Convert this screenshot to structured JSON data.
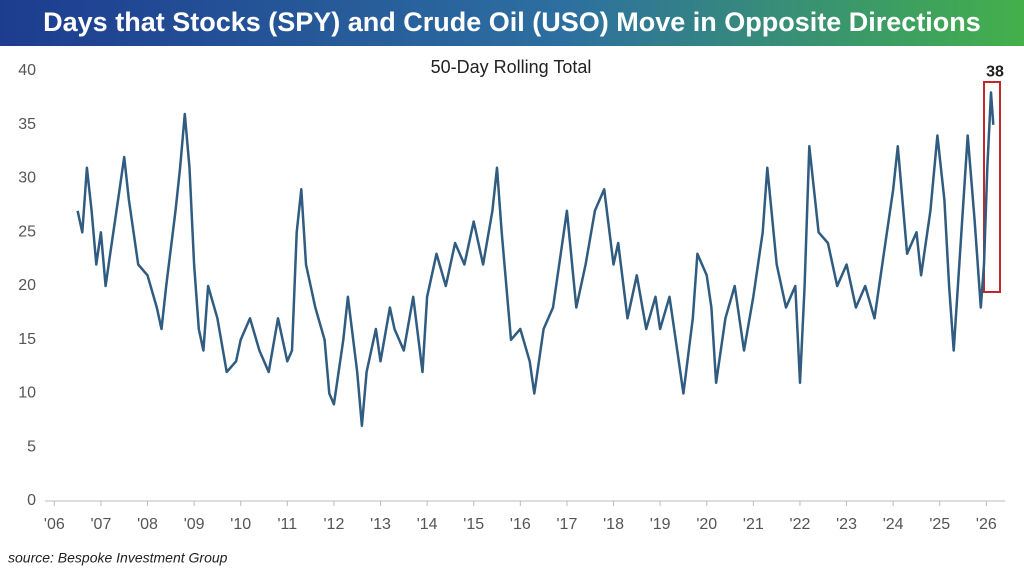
{
  "chart_data": {
    "type": "line",
    "title": "Days that Stocks (SPY) and Crude Oil (USO) Move in Opposite Directions",
    "subtitle": "50-Day Rolling Total",
    "source": "source: Bespoke Investment Group",
    "color": "#2f5c80",
    "x": [
      2006.5,
      2006.6,
      2006.7,
      2006.8,
      2006.9,
      2007.0,
      2007.1,
      2007.2,
      2007.4,
      2007.5,
      2007.6,
      2007.8,
      2008.0,
      2008.2,
      2008.3,
      2008.4,
      2008.6,
      2008.7,
      2008.8,
      2008.9,
      2009.0,
      2009.1,
      2009.2,
      2009.3,
      2009.5,
      2009.7,
      2009.9,
      2010.0,
      2010.2,
      2010.4,
      2010.6,
      2010.8,
      2011.0,
      2011.1,
      2011.2,
      2011.3,
      2011.4,
      2011.6,
      2011.8,
      2011.9,
      2012.0,
      2012.2,
      2012.3,
      2012.5,
      2012.6,
      2012.7,
      2012.9,
      2013.0,
      2013.2,
      2013.3,
      2013.5,
      2013.7,
      2013.9,
      2014.0,
      2014.2,
      2014.4,
      2014.6,
      2014.8,
      2015.0,
      2015.2,
      2015.4,
      2015.5,
      2015.6,
      2015.8,
      2016.0,
      2016.2,
      2016.3,
      2016.5,
      2016.7,
      2016.9,
      2017.0,
      2017.2,
      2017.4,
      2017.6,
      2017.8,
      2018.0,
      2018.1,
      2018.3,
      2018.5,
      2018.7,
      2018.9,
      2019.0,
      2019.2,
      2019.4,
      2019.5,
      2019.7,
      2019.8,
      2020.0,
      2020.1,
      2020.2,
      2020.4,
      2020.6,
      2020.8,
      2021.0,
      2021.2,
      2021.3,
      2021.5,
      2021.7,
      2021.9,
      2022.0,
      2022.1,
      2022.2,
      2022.4,
      2022.6,
      2022.8,
      2023.0,
      2023.2,
      2023.4,
      2023.6,
      2023.8,
      2024.0,
      2024.1,
      2024.3,
      2024.5,
      2024.6,
      2024.8,
      2024.95,
      2025.1,
      2025.2,
      2025.3,
      2025.45,
      2025.6,
      2025.75,
      2025.88,
      2025.95,
      2026.02,
      2026.1,
      2026.15
    ],
    "values": [
      27,
      25,
      31,
      27,
      22,
      25,
      20,
      23,
      29,
      32,
      28,
      22,
      21,
      18,
      16,
      20,
      27,
      31,
      36,
      31,
      22,
      16,
      14,
      20,
      17,
      12,
      13,
      15,
      17,
      14,
      12,
      17,
      13,
      14,
      25,
      29,
      22,
      18,
      15,
      10,
      9,
      15,
      19,
      12,
      7,
      12,
      16,
      13,
      18,
      16,
      14,
      19,
      12,
      19,
      23,
      20,
      24,
      22,
      26,
      22,
      27,
      31,
      25,
      15,
      16,
      13,
      10,
      16,
      18,
      24,
      27,
      18,
      22,
      27,
      29,
      22,
      24,
      17,
      21,
      16,
      19,
      16,
      19,
      13,
      10,
      17,
      23,
      21,
      18,
      11,
      17,
      20,
      14,
      19,
      25,
      31,
      22,
      18,
      20,
      11,
      20,
      33,
      25,
      24,
      20,
      22,
      18,
      20,
      17,
      23,
      29,
      33,
      23,
      25,
      21,
      27,
      34,
      28,
      20,
      14,
      24,
      34,
      26,
      18,
      22,
      31,
      38,
      35
    ],
    "annotations": [
      {
        "x": 2026.1,
        "y": 38,
        "text": "38"
      }
    ],
    "xlim": [
      2005.8,
      2026.4
    ],
    "xticks": [
      {
        "value": 2006,
        "label": "'06"
      },
      {
        "value": 2007,
        "label": "'07"
      },
      {
        "value": 2008,
        "label": "'08"
      },
      {
        "value": 2009,
        "label": "'09"
      },
      {
        "value": 2010,
        "label": "'10"
      },
      {
        "value": 2011,
        "label": "'11"
      },
      {
        "value": 2012,
        "label": "'12"
      },
      {
        "value": 2013,
        "label": "'13"
      },
      {
        "value": 2014,
        "label": "'14"
      },
      {
        "value": 2015,
        "label": "'15"
      },
      {
        "value": 2016,
        "label": "'16"
      },
      {
        "value": 2017,
        "label": "'17"
      },
      {
        "value": 2018,
        "label": "'18"
      },
      {
        "value": 2019,
        "label": "'19"
      },
      {
        "value": 2020,
        "label": "'20"
      },
      {
        "value": 2021,
        "label": "'21"
      },
      {
        "value": 2022,
        "label": "'22"
      },
      {
        "value": 2023,
        "label": "'23"
      },
      {
        "value": 2024,
        "label": "'24"
      },
      {
        "value": 2025,
        "label": "'25"
      },
      {
        "value": 2026,
        "label": "'26"
      }
    ],
    "ylim": [
      0,
      40
    ],
    "yticks": [
      0,
      5,
      10,
      15,
      20,
      25,
      30,
      35,
      40
    ],
    "grid": false
  }
}
